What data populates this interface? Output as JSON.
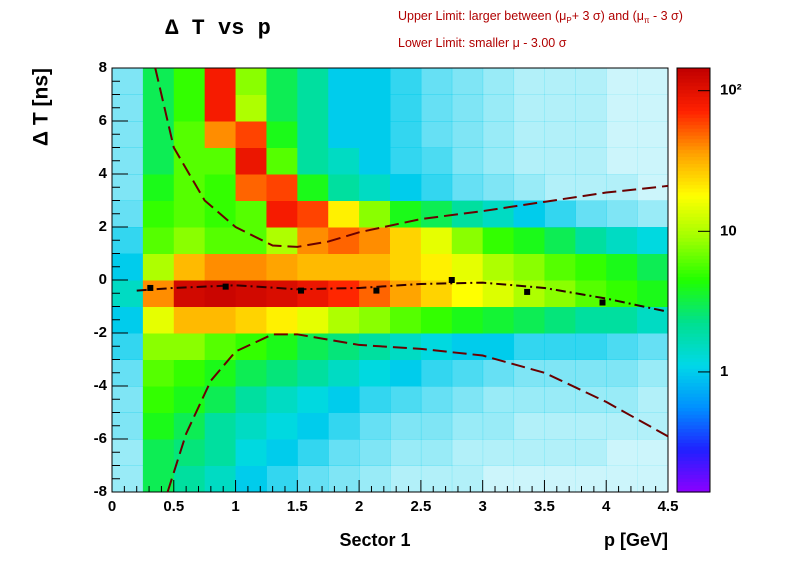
{
  "chart_data": {
    "type": "heatmap",
    "title": "Δ T vs p",
    "annotations": [
      [
        "Upper Limit: larger between (μ",
        "P",
        "+ 3 σ) and (μ",
        "π",
        " - 3 σ)"
      ],
      [
        "Lower Limit: smaller μ - 3.00 σ"
      ]
    ],
    "sector_label": "Sector 1",
    "x_label": "p [GeV]",
    "y_label": "Δ T   [ns]",
    "xlim": [
      0,
      4.5
    ],
    "xticks": [
      0,
      0.5,
      1,
      1.5,
      2,
      2.5,
      3,
      3.5,
      4,
      4.5
    ],
    "ylim": [
      -8,
      8
    ],
    "yticks": [
      -8,
      -6,
      -4,
      -2,
      0,
      2,
      4,
      6,
      8
    ],
    "zlim": [
      0.14,
      145
    ],
    "zticks": [
      1,
      10,
      {
        "value": 100,
        "label": "10²"
      }
    ],
    "z_log": true,
    "palette": [
      "#8c00ff",
      "#2020ff",
      "#0090ff",
      "#00d8e8",
      "#00e090",
      "#20ff00",
      "#a0ff00",
      "#ffff00",
      "#ffa000",
      "#ff2000",
      "#c00000"
    ],
    "x_bins": [
      0,
      0.25,
      0.5,
      0.75,
      1,
      1.25,
      1.5,
      1.75,
      2,
      2.25,
      2.5,
      2.75,
      3,
      3.25,
      3.5,
      3.75,
      4,
      4.25,
      4.5
    ],
    "y_bins": [
      -8,
      -7,
      -6,
      -5,
      -4,
      -3,
      -2,
      -1,
      0,
      1,
      2,
      3,
      4,
      5,
      6,
      7,
      8
    ],
    "z": [
      [
        0.4,
        3,
        2,
        1.5,
        1,
        0.8,
        0.6,
        0.5,
        0.4,
        0.3,
        0.3,
        0.3,
        0.2,
        0.2,
        0.2,
        0.2,
        0.2,
        0.2
      ],
      [
        0.4,
        3,
        2.5,
        2,
        1.2,
        1,
        0.8,
        0.6,
        0.5,
        0.4,
        0.4,
        0.3,
        0.3,
        0.3,
        0.3,
        0.3,
        0.2,
        0.2
      ],
      [
        0.5,
        4,
        3,
        2,
        1.5,
        1.2,
        1,
        0.8,
        0.6,
        0.5,
        0.5,
        0.4,
        0.4,
        0.3,
        0.3,
        0.3,
        0.3,
        0.3
      ],
      [
        0.5,
        5,
        4,
        3,
        2,
        1.5,
        1.2,
        1,
        0.8,
        0.7,
        0.6,
        0.5,
        0.4,
        0.4,
        0.4,
        0.4,
        0.4,
        0.3
      ],
      [
        0.6,
        6,
        5,
        4,
        3,
        2.5,
        2,
        1.5,
        1.2,
        1,
        0.8,
        0.7,
        0.6,
        0.5,
        0.5,
        0.5,
        0.5,
        0.4
      ],
      [
        0.8,
        8,
        8,
        6,
        5,
        4,
        3,
        2.5,
        2,
        1.5,
        1.2,
        1,
        1,
        0.8,
        0.8,
        0.8,
        0.7,
        0.6
      ],
      [
        1,
        15,
        30,
        30,
        25,
        20,
        15,
        10,
        8,
        6,
        5,
        4,
        3.5,
        3,
        2.5,
        2,
        2,
        1.5
      ],
      [
        1.5,
        40,
        120,
        130,
        120,
        110,
        90,
        70,
        50,
        35,
        25,
        18,
        14,
        10,
        8,
        6,
        5,
        4
      ],
      [
        1,
        10,
        30,
        40,
        40,
        35,
        30,
        30,
        30,
        25,
        20,
        15,
        10,
        8,
        6,
        5,
        4,
        3
      ],
      [
        0.8,
        6,
        8,
        6,
        6,
        10,
        40,
        50,
        40,
        25,
        15,
        8,
        5,
        4,
        3,
        2,
        1.5,
        1.2
      ],
      [
        0.6,
        5,
        6,
        5,
        6,
        80,
        60,
        20,
        8,
        4,
        3,
        2,
        1.5,
        1,
        0.8,
        0.6,
        0.5,
        0.4
      ],
      [
        0.5,
        4,
        6,
        5,
        50,
        60,
        4,
        2,
        1.5,
        1,
        0.8,
        0.6,
        0.5,
        0.4,
        0.3,
        0.3,
        0.3,
        0.2
      ],
      [
        0.5,
        3,
        6,
        6,
        90,
        6,
        2,
        1.5,
        1,
        0.8,
        0.7,
        0.5,
        0.4,
        0.3,
        0.3,
        0.3,
        0.2,
        0.2
      ],
      [
        0.5,
        3,
        6,
        40,
        60,
        4,
        2,
        1,
        1,
        0.8,
        0.6,
        0.5,
        0.4,
        0.3,
        0.3,
        0.3,
        0.2,
        0.2
      ],
      [
        0.5,
        3,
        5,
        80,
        10,
        3,
        2,
        1,
        1,
        0.8,
        0.6,
        0.5,
        0.4,
        0.3,
        0.3,
        0.3,
        0.2,
        0.2
      ],
      [
        0.5,
        3,
        5,
        80,
        8,
        3,
        2,
        1,
        1,
        0.8,
        0.6,
        0.5,
        0.4,
        0.3,
        0.3,
        0.3,
        0.2,
        0.2
      ]
    ],
    "curves": [
      {
        "x": [
          0.35,
          0.5,
          0.75,
          1.0,
          1.3,
          1.5,
          1.75,
          2.0,
          2.5,
          3.0,
          3.5,
          4.0,
          4.5
        ],
        "y": [
          8,
          5,
          3,
          2,
          1.3,
          1.25,
          1.45,
          1.8,
          2.3,
          2.6,
          2.95,
          3.3,
          3.55
        ],
        "color": "#6a0000",
        "style": "dashed"
      },
      {
        "x": [
          0.45,
          0.6,
          0.8,
          1.0,
          1.3,
          1.5,
          1.75,
          2.0,
          2.5,
          3.0,
          3.5,
          4.0,
          4.5
        ],
        "y": [
          -8,
          -5.8,
          -3.8,
          -2.7,
          -2.05,
          -2.05,
          -2.25,
          -2.45,
          -2.6,
          -2.85,
          -3.5,
          -4.6,
          -5.9
        ],
        "color": "#6a0000",
        "style": "dashed"
      },
      {
        "x": [
          0.2,
          0.5,
          1.0,
          1.5,
          2.0,
          2.5,
          3.0,
          3.5,
          4.0,
          4.5
        ],
        "y": [
          -0.4,
          -0.3,
          -0.2,
          -0.35,
          -0.3,
          -0.15,
          -0.1,
          -0.3,
          -0.7,
          -1.2
        ],
        "color": "#300000",
        "style": "dashdot"
      }
    ],
    "points": {
      "x": [
        0.31,
        0.92,
        1.53,
        2.14,
        2.75,
        3.36,
        3.97
      ],
      "y": [
        -0.3,
        -0.25,
        -0.4,
        -0.4,
        0,
        -0.45,
        -0.85
      ],
      "color": "#000000"
    }
  }
}
